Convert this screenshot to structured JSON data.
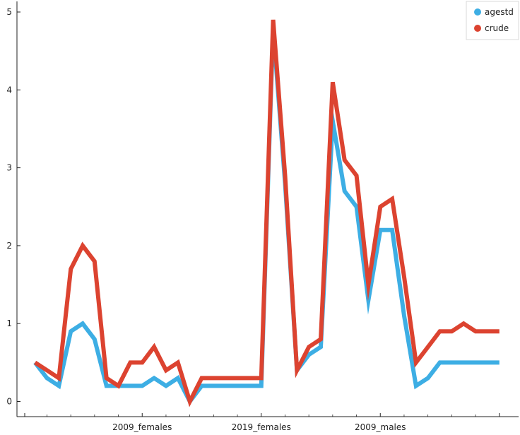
{
  "chart_data": {
    "type": "line",
    "title": "",
    "xlabel": "",
    "ylabel": "",
    "ylim": [
      0,
      5
    ],
    "yticks": [
      0,
      1,
      2,
      3,
      4,
      5
    ],
    "xticks": [
      {
        "x": 10,
        "label": "2009_females"
      },
      {
        "x": 20,
        "label": "2019_females"
      },
      {
        "x": 30,
        "label": "2009_males"
      },
      {
        "x": 40,
        "label": ""
      }
    ],
    "grid": false,
    "legend_position": "top-right",
    "x": [
      1,
      2,
      3,
      4,
      5,
      6,
      7,
      8,
      9,
      10,
      11,
      12,
      13,
      14,
      15,
      16,
      17,
      18,
      19,
      20,
      21,
      22,
      23,
      24,
      25,
      26,
      27,
      28,
      29,
      30,
      31,
      32,
      33,
      34,
      35,
      36,
      37,
      38,
      39,
      40
    ],
    "series": [
      {
        "name": "agestd",
        "color": "#3DAEE4",
        "values": [
          0.5,
          0.3,
          0.2,
          0.9,
          1.0,
          0.8,
          0.2,
          0.2,
          0.2,
          0.2,
          0.3,
          0.2,
          0.3,
          0.0,
          0.2,
          0.2,
          0.2,
          0.2,
          0.2,
          0.2,
          4.8,
          2.8,
          0.4,
          0.6,
          0.7,
          3.6,
          2.7,
          2.5,
          1.3,
          2.2,
          2.2,
          1.1,
          0.2,
          0.3,
          0.5,
          0.5,
          0.5,
          0.5,
          0.5,
          0.5
        ]
      },
      {
        "name": "crude",
        "color": "#DC4330",
        "values": [
          0.5,
          0.4,
          0.3,
          1.7,
          2.0,
          1.8,
          0.3,
          0.2,
          0.5,
          0.5,
          0.7,
          0.4,
          0.5,
          0.0,
          0.3,
          0.3,
          0.3,
          0.3,
          0.3,
          0.3,
          4.9,
          2.9,
          0.4,
          0.7,
          0.8,
          4.1,
          3.1,
          2.9,
          1.5,
          2.5,
          2.6,
          1.6,
          0.5,
          0.7,
          0.9,
          0.9,
          1.0,
          0.9,
          0.9,
          0.9
        ]
      }
    ]
  }
}
